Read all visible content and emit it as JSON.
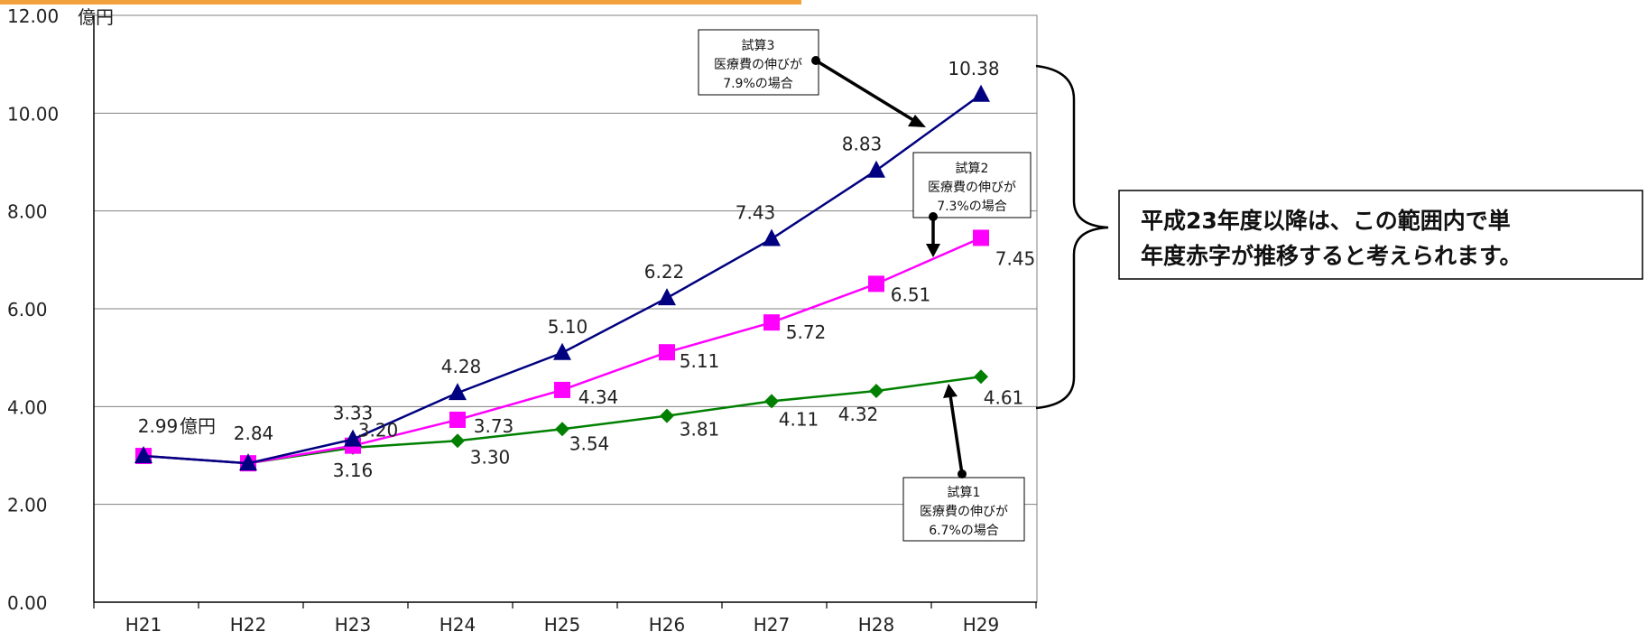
{
  "colors": {
    "top_bar": "#F2A03D",
    "series1": "#008000",
    "series2": "#FF00FF",
    "series3": "#000080",
    "grid": "#808080"
  },
  "chart_data": {
    "type": "line",
    "categories": [
      "H21",
      "H22",
      "H23",
      "H24",
      "H25",
      "H26",
      "H27",
      "H28",
      "H29"
    ],
    "ylim": [
      0,
      12
    ],
    "y_ticks": [
      "0.00",
      "2.00",
      "4.00",
      "6.00",
      "8.00",
      "10.00",
      "12.00"
    ],
    "y_unit": "億円",
    "first_value_unit": "億円",
    "grid": true,
    "series": [
      {
        "key": "s1",
        "marker": "diamond",
        "values": [
          2.99,
          2.84,
          3.16,
          3.3,
          3.54,
          3.81,
          4.11,
          4.32,
          4.61
        ],
        "labels": [
          "",
          "",
          "3.16",
          "3.30",
          "3.54",
          "3.81",
          "4.11",
          "4.32",
          "4.61"
        ]
      },
      {
        "key": "s2",
        "marker": "square",
        "values": [
          2.99,
          2.84,
          3.2,
          3.73,
          4.34,
          5.11,
          5.72,
          6.51,
          7.45
        ],
        "labels": [
          "",
          "",
          "3.20",
          "3.73",
          "4.34",
          "5.11",
          "5.72",
          "6.51",
          "7.45"
        ]
      },
      {
        "key": "s3",
        "marker": "triangle",
        "values": [
          2.99,
          2.84,
          3.33,
          4.28,
          5.1,
          6.22,
          7.43,
          8.83,
          10.38
        ],
        "labels": [
          "2.99",
          "2.84",
          "3.33",
          "4.28",
          "5.10",
          "6.22",
          "7.43",
          "8.83",
          "10.38"
        ]
      }
    ]
  },
  "callouts": {
    "trial3": {
      "line1": "試算3",
      "line2": "医療費の伸びが",
      "line3": "7.9%の場合"
    },
    "trial2": {
      "line1": "試算2",
      "line2": "医療費の伸びが",
      "line3": "7.3%の場合"
    },
    "trial1": {
      "line1": "試算1",
      "line2": "医療費の伸びが",
      "line3": "6.7%の場合"
    }
  },
  "summary": {
    "line1": "平成23年度以降は、この範囲内で単",
    "line2": "年度赤字が推移すると考えられます。"
  }
}
